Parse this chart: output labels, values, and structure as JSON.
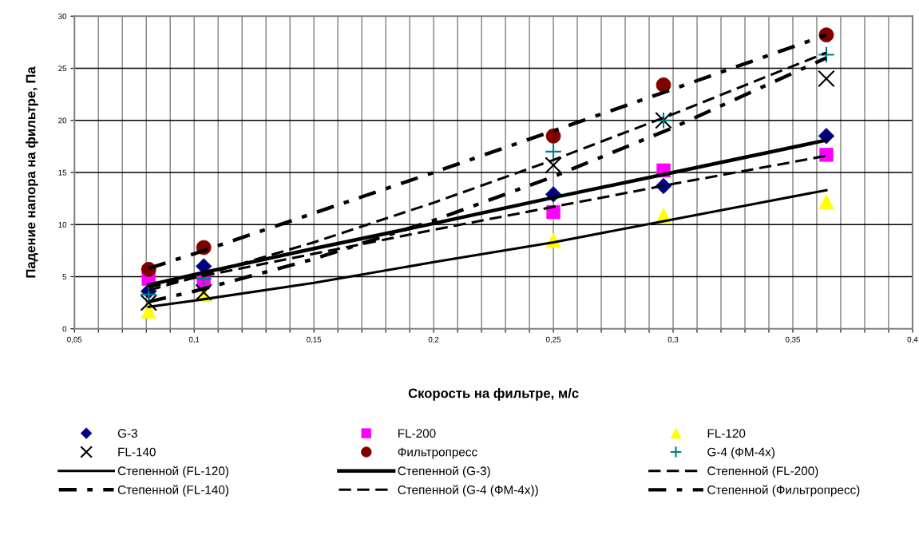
{
  "chart_data": {
    "type": "scatter",
    "xlabel": "Скорость на фильтре, м/с",
    "ylabel": "Падение напора на фильтре, Па",
    "xlim": [
      0.05,
      0.4
    ],
    "ylim": [
      0,
      30
    ],
    "xticks": [
      {
        "value": 0.05,
        "label": "0,05"
      },
      {
        "value": 0.06,
        "label": null
      },
      {
        "value": 0.07,
        "label": null
      },
      {
        "value": 0.08,
        "label": null
      },
      {
        "value": 0.09,
        "label": null
      },
      {
        "value": 0.1,
        "label": "0,1"
      },
      {
        "value": 0.11,
        "label": null
      },
      {
        "value": 0.12,
        "label": null
      },
      {
        "value": 0.13,
        "label": null
      },
      {
        "value": 0.14,
        "label": null
      },
      {
        "value": 0.15,
        "label": "0,15"
      },
      {
        "value": 0.16,
        "label": null
      },
      {
        "value": 0.17,
        "label": null
      },
      {
        "value": 0.18,
        "label": null
      },
      {
        "value": 0.19,
        "label": null
      },
      {
        "value": 0.2,
        "label": "0,2"
      },
      {
        "value": 0.21,
        "label": null
      },
      {
        "value": 0.22,
        "label": null
      },
      {
        "value": 0.23,
        "label": null
      },
      {
        "value": 0.24,
        "label": null
      },
      {
        "value": 0.25,
        "label": "0,25"
      },
      {
        "value": 0.26,
        "label": null
      },
      {
        "value": 0.27,
        "label": null
      },
      {
        "value": 0.28,
        "label": null
      },
      {
        "value": 0.29,
        "label": null
      },
      {
        "value": 0.3,
        "label": "0,3"
      },
      {
        "value": 0.31,
        "label": null
      },
      {
        "value": 0.32,
        "label": null
      },
      {
        "value": 0.33,
        "label": null
      },
      {
        "value": 0.34,
        "label": null
      },
      {
        "value": 0.35,
        "label": "0,35"
      },
      {
        "value": 0.36,
        "label": null
      },
      {
        "value": 0.37,
        "label": null
      },
      {
        "value": 0.38,
        "label": null
      },
      {
        "value": 0.39,
        "label": null
      },
      {
        "value": 0.4,
        "label": "0,4"
      }
    ],
    "yticks": [
      0,
      5,
      10,
      15,
      20,
      25,
      30
    ],
    "grid": true,
    "legend": "bottom",
    "series": [
      {
        "name": "G-3",
        "marker": "diamond",
        "color": "#000080",
        "x": [
          0.081,
          0.104,
          0.25,
          0.296,
          0.364
        ],
        "values": [
          3.6,
          6.0,
          12.9,
          13.7,
          18.5
        ]
      },
      {
        "name": "FL-200",
        "marker": "square",
        "color": "#ff00ff",
        "x": [
          0.081,
          0.104,
          0.25,
          0.296,
          0.364
        ],
        "values": [
          4.8,
          4.6,
          11.2,
          15.2,
          16.7
        ]
      },
      {
        "name": "FL-120",
        "marker": "triangle",
        "color": "#ffff00",
        "x": [
          0.081,
          0.104,
          0.25,
          0.296,
          0.364
        ],
        "values": [
          1.7,
          3.3,
          8.5,
          10.9,
          12.2
        ]
      },
      {
        "name": "FL-140",
        "marker": "x",
        "color": "#000000",
        "x": [
          0.081,
          0.104,
          0.25,
          0.296,
          0.364
        ],
        "values": [
          2.5,
          3.5,
          15.7,
          20.0,
          24.0
        ]
      },
      {
        "name": "Фильтропресс",
        "marker": "circle",
        "color": "#800000",
        "x": [
          0.081,
          0.104,
          0.25,
          0.296,
          0.364
        ],
        "values": [
          5.7,
          7.8,
          18.5,
          23.4,
          28.2
        ]
      },
      {
        "name": "G-4 (ФМ-4х)",
        "marker": "cross",
        "color": "#008080",
        "x": [
          0.081,
          0.104,
          0.25,
          0.296,
          0.364
        ],
        "values": [
          3.3,
          4.8,
          17.0,
          20.0,
          26.3
        ]
      },
      {
        "name": "Степенной (FL-120)",
        "type": "line",
        "line_style": "solid",
        "color": "#000000",
        "x": [
          0.081,
          0.1,
          0.15,
          0.2,
          0.25,
          0.3,
          0.364
        ],
        "values": [
          2.1,
          2.7,
          4.4,
          6.4,
          8.3,
          10.5,
          13.3
        ]
      },
      {
        "name": "Степенной (G-3)",
        "type": "line",
        "line_style": "solid",
        "color": "#000000",
        "x": [
          0.081,
          0.1,
          0.15,
          0.2,
          0.25,
          0.3,
          0.364
        ],
        "values": [
          4.2,
          5.2,
          7.7,
          10.1,
          12.6,
          15.0,
          18.1
        ]
      },
      {
        "name": "Степенной (FL-200)",
        "type": "line",
        "line_style": "dashed",
        "color": "#000000",
        "x": [
          0.081,
          0.1,
          0.15,
          0.2,
          0.25,
          0.3,
          0.364
        ],
        "values": [
          4.0,
          4.9,
          7.2,
          9.5,
          11.7,
          13.9,
          16.6
        ]
      },
      {
        "name": "Степенной (FL-140)",
        "type": "line",
        "line_style": "dashdot",
        "color": "#000000",
        "x": [
          0.081,
          0.1,
          0.15,
          0.2,
          0.25,
          0.3,
          0.364
        ],
        "values": [
          2.6,
          3.6,
          6.7,
          10.4,
          14.6,
          19.3,
          26.0
        ]
      },
      {
        "name": "Степенной (G-4 (ФМ-4х))",
        "type": "line",
        "line_style": "dashed",
        "color": "#000000",
        "x": [
          0.081,
          0.1,
          0.15,
          0.2,
          0.25,
          0.3,
          0.364
        ],
        "values": [
          3.7,
          4.9,
          8.3,
          12.1,
          16.2,
          20.6,
          26.5
        ]
      },
      {
        "name": "Степенной (Фильтропресс)",
        "type": "line",
        "line_style": "dashdot",
        "color": "#000000",
        "x": [
          0.081,
          0.1,
          0.15,
          0.2,
          0.25,
          0.3,
          0.364
        ],
        "values": [
          5.8,
          7.2,
          11.1,
          15.0,
          19.0,
          23.0,
          28.2
        ]
      }
    ]
  }
}
